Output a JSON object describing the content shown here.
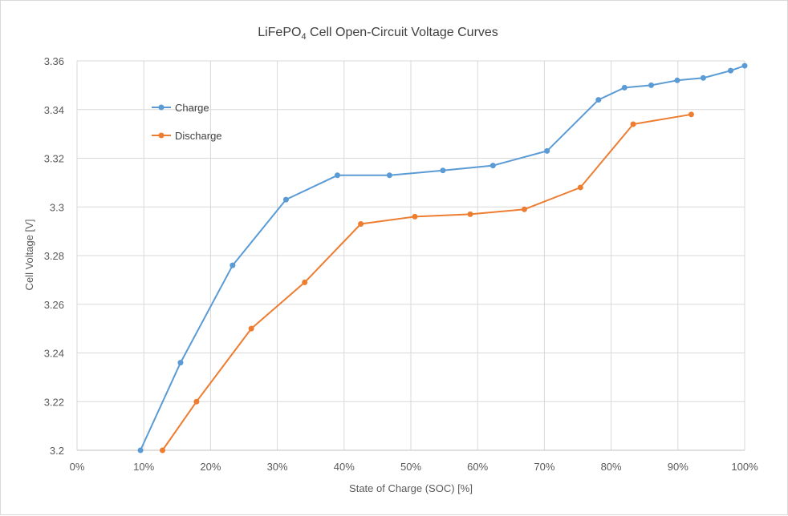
{
  "chart_data": {
    "type": "line",
    "title_main": "LiFePO",
    "title_sub": "4",
    "title_rest": " Cell Open-Circuit Voltage Curves",
    "xlabel": "State of Charge (SOC) [%]",
    "ylabel": "Cell Voltage [V]",
    "xlim": [
      0,
      100
    ],
    "ylim": [
      3.2,
      3.36
    ],
    "x_ticks": [
      0,
      10,
      20,
      30,
      40,
      50,
      60,
      70,
      80,
      90,
      100
    ],
    "x_tick_labels": [
      "0%",
      "10%",
      "20%",
      "30%",
      "40%",
      "50%",
      "60%",
      "70%",
      "80%",
      "90%",
      "100%"
    ],
    "y_ticks": [
      3.2,
      3.22,
      3.24,
      3.26,
      3.28,
      3.3,
      3.32,
      3.34,
      3.36
    ],
    "y_tick_labels": [
      "3.2",
      "3.22",
      "3.24",
      "3.26",
      "3.28",
      "3.3",
      "3.32",
      "3.34",
      "3.36"
    ],
    "grid": true,
    "legend_position": "upper-left",
    "series": [
      {
        "name": "Charge",
        "color": "#5b9bd5",
        "x": [
          9.5,
          15.5,
          23.3,
          31.3,
          39.0,
          46.8,
          54.8,
          62.3,
          70.4,
          78.1,
          82.0,
          86.0,
          89.9,
          93.8,
          97.9,
          100.0
        ],
        "y": [
          3.2,
          3.236,
          3.276,
          3.303,
          3.313,
          3.313,
          3.315,
          3.317,
          3.323,
          3.344,
          3.349,
          3.35,
          3.352,
          3.353,
          3.356,
          3.358
        ]
      },
      {
        "name": "Discharge",
        "color": "#ed7d31",
        "x": [
          12.8,
          17.9,
          26.1,
          34.1,
          42.5,
          50.6,
          58.9,
          67.0,
          75.4,
          83.3,
          92.0
        ],
        "y": [
          3.2,
          3.22,
          3.25,
          3.269,
          3.293,
          3.296,
          3.297,
          3.299,
          3.308,
          3.334,
          3.338
        ]
      }
    ]
  }
}
